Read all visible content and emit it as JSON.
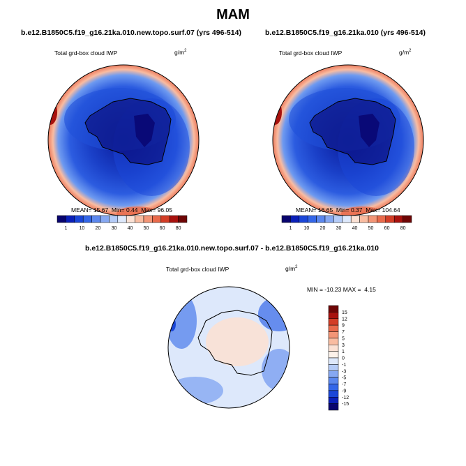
{
  "title": "MAM",
  "panel_left": {
    "run_title": "b.e12.B1850C5.f19_g16.21ka.010.new.topo.surf.07 (yrs 496-514)",
    "variable": "Total grd-box cloud IWP",
    "units_base": "g/m",
    "units_exp": "2",
    "stats": {
      "mean_label": "MEAN=",
      "mean": "15.67",
      "min_label": "Min=",
      "min": "0.44",
      "max_label": "Max=",
      "max": "96.05"
    }
  },
  "panel_right": {
    "run_title": "b.e12.B1850C5.f19_g16.21ka.010 (yrs 496-514)",
    "variable": "Total grd-box cloud IWP",
    "units_base": "g/m",
    "units_exp": "2",
    "stats": {
      "mean_label": "MEAN=",
      "mean": "16.65",
      "min_label": "Min=",
      "min": "0.37",
      "max_label": "Max=",
      "max": "104.64"
    }
  },
  "panel_diff": {
    "run_title": "b.e12.B1850C5.f19_g16.21ka.010.new.topo.surf.07 - b.e12.B1850C5.f19_g16.21ka.010",
    "variable": "Total grd-box cloud IWP",
    "units_base": "g/m",
    "units_exp": "2",
    "minmax": {
      "min_label": "MIN =",
      "min": "-10.23",
      "max_label": "MAX =",
      "max": "4.15"
    }
  },
  "colorbar_abs": {
    "colors": [
      "#08046e",
      "#0a1fb8",
      "#1a46d8",
      "#3366e8",
      "#5b87ee",
      "#86a8f2",
      "#b4cbf7",
      "#dde8fb",
      "#fbe1d4",
      "#f9bca1",
      "#f39576",
      "#e96a4b",
      "#d33d26",
      "#a8110d",
      "#6e0505"
    ],
    "labels": [
      "1",
      "10",
      "20",
      "30",
      "40",
      "50",
      "60",
      "80"
    ]
  },
  "colorbar_diff": {
    "colors": [
      "#6e0505",
      "#a8110d",
      "#d33d26",
      "#e96a4b",
      "#f39576",
      "#f9bca1",
      "#fbe1d4",
      "#fdf2ea",
      "#dde8fb",
      "#b4cbf7",
      "#86a8f2",
      "#5b87ee",
      "#3366e8",
      "#1a46d8",
      "#0a1fb8",
      "#08046e"
    ],
    "labels": [
      "15",
      "12",
      "9",
      "7",
      "5",
      "3",
      "1",
      "0",
      "-1",
      "-3",
      "-5",
      "-7",
      "-9",
      "-12",
      "-15"
    ]
  },
  "colors": {
    "map_deep": "#0a1a9a",
    "map_mid": "#2050d8",
    "map_light": "#6e9af0",
    "map_warm": "#e96a4b",
    "diff_bg": "#dde8fb",
    "diff_pos": "#fbe1d4",
    "diff_neg": "#5b87ee"
  }
}
